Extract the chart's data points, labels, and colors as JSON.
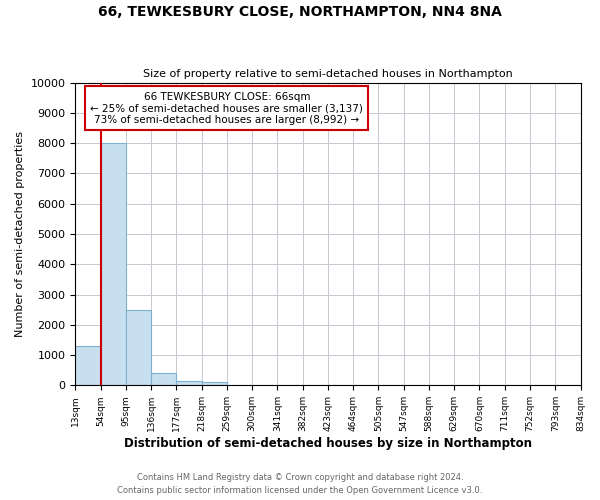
{
  "title": "66, TEWKESBURY CLOSE, NORTHAMPTON, NN4 8NA",
  "subtitle": "Size of property relative to semi-detached houses in Northampton",
  "xlabel": "Distribution of semi-detached houses by size in Northampton",
  "ylabel": "Number of semi-detached properties",
  "bin_labels": [
    "13sqm",
    "54sqm",
    "95sqm",
    "136sqm",
    "177sqm",
    "218sqm",
    "259sqm",
    "300sqm",
    "341sqm",
    "382sqm",
    "423sqm",
    "464sqm",
    "505sqm",
    "547sqm",
    "588sqm",
    "629sqm",
    "670sqm",
    "711sqm",
    "752sqm",
    "793sqm",
    "834sqm"
  ],
  "bar_values": [
    1300,
    8000,
    2500,
    400,
    150,
    100,
    0,
    0,
    0,
    0,
    0,
    0,
    0,
    0,
    0,
    0,
    0,
    0,
    0,
    0
  ],
  "bar_color": "#c8dff0",
  "bar_edge_color": "#7fb0d0",
  "property_bin_index": 1,
  "property_label": "66 TEWKESBURY CLOSE: 66sqm",
  "annotation_line1": "← 25% of semi-detached houses are smaller (3,137)",
  "annotation_line2": "73% of semi-detached houses are larger (8,992) →",
  "red_line_color": "#cc0000",
  "annotation_box_edge_color": "#cc0000",
  "ylim": [
    0,
    10000
  ],
  "yticks": [
    0,
    1000,
    2000,
    3000,
    4000,
    5000,
    6000,
    7000,
    8000,
    9000,
    10000
  ],
  "footer_line1": "Contains HM Land Registry data © Crown copyright and database right 2024.",
  "footer_line2": "Contains public sector information licensed under the Open Government Licence v3.0.",
  "background_color": "#ffffff",
  "grid_color": "#c8c8d0"
}
